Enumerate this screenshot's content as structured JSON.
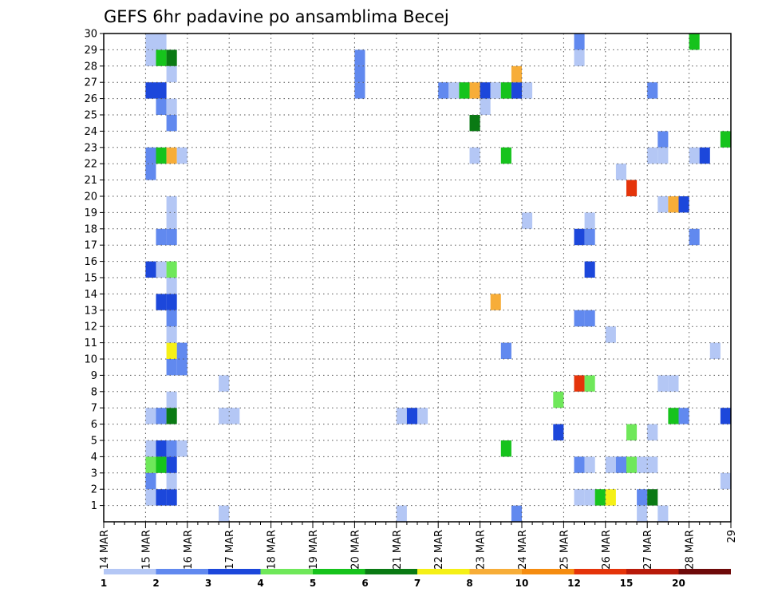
{
  "chart_data": {
    "type": "heatmap",
    "title": "GEFS 6hr padavine po ansamblima Becej",
    "xlabel": "",
    "ylabel": "",
    "x_tick_labels": [
      "14 MAR",
      "15 MAR",
      "16 MAR",
      "17 MAR",
      "18 MAR",
      "19 MAR",
      "20 MAR",
      "21 MAR",
      "22 MAR",
      "23 MAR",
      "24 MAR",
      "25 MAR",
      "26 MAR",
      "27 MAR",
      "28 MAR",
      "29"
    ],
    "y_tick_labels": [
      "1",
      "2",
      "3",
      "4",
      "5",
      "6",
      "7",
      "8",
      "9",
      "10",
      "11",
      "12",
      "13",
      "14",
      "15",
      "16",
      "17",
      "18",
      "19",
      "20",
      "21",
      "22",
      "23",
      "24",
      "25",
      "26",
      "27",
      "28",
      "29",
      "30"
    ],
    "x_range": [
      "14 MAR 00z",
      "29 MAR 00z"
    ],
    "time_step": "6hr",
    "y_range": [
      0,
      30
    ],
    "grid": true,
    "colorbar": {
      "labels": [
        "1",
        "2",
        "3",
        "4",
        "5",
        "6",
        "7",
        "8",
        "10",
        "12",
        "15",
        "20"
      ],
      "colors": [
        "#b4c7f5",
        "#6189ef",
        "#1c47db",
        "#6fe85a",
        "#16c31c",
        "#0a7a14",
        "#f5f016",
        "#f7ad38",
        "#f58c10",
        "#e5340a",
        "#b81a0a",
        "#6e0a0a"
      ]
    },
    "cells": [
      {
        "t": "15 MAR 00z",
        "member": 1,
        "level": 1
      },
      {
        "t": "15 MAR 06z",
        "member": 1,
        "level": 3
      },
      {
        "t": "15 MAR 12z",
        "member": 1,
        "level": 3
      },
      {
        "t": "15 MAR 00z",
        "member": 2,
        "level": 2
      },
      {
        "t": "15 MAR 12z",
        "member": 2,
        "level": 1
      },
      {
        "t": "15 MAR 00z",
        "member": 3,
        "level": 4
      },
      {
        "t": "15 MAR 06z",
        "member": 3,
        "level": 5
      },
      {
        "t": "15 MAR 12z",
        "member": 3,
        "level": 3
      },
      {
        "t": "15 MAR 00z",
        "member": 4,
        "level": 1
      },
      {
        "t": "15 MAR 06z",
        "member": 4,
        "level": 3
      },
      {
        "t": "15 MAR 12z",
        "member": 4,
        "level": 2
      },
      {
        "t": "15 MAR 18z",
        "member": 4,
        "level": 1
      },
      {
        "t": "15 MAR 00z",
        "member": 6,
        "level": 1
      },
      {
        "t": "15 MAR 06z",
        "member": 6,
        "level": 2
      },
      {
        "t": "15 MAR 12z",
        "member": 6,
        "level": 6
      },
      {
        "t": "15 MAR 12z",
        "member": 7,
        "level": 1
      },
      {
        "t": "15 MAR 12z",
        "member": 9,
        "level": 2
      },
      {
        "t": "15 MAR 18z",
        "member": 9,
        "level": 2
      },
      {
        "t": "15 MAR 12z",
        "member": 10,
        "level": 7
      },
      {
        "t": "15 MAR 18z",
        "member": 10,
        "level": 2
      },
      {
        "t": "15 MAR 12z",
        "member": 11,
        "level": 1
      },
      {
        "t": "15 MAR 12z",
        "member": 12,
        "level": 2
      },
      {
        "t": "15 MAR 06z",
        "member": 13,
        "level": 3
      },
      {
        "t": "15 MAR 12z",
        "member": 13,
        "level": 3
      },
      {
        "t": "15 MAR 12z",
        "member": 14,
        "level": 1
      },
      {
        "t": "15 MAR 00z",
        "member": 15,
        "level": 3
      },
      {
        "t": "15 MAR 06z",
        "member": 15,
        "level": 1
      },
      {
        "t": "15 MAR 12z",
        "member": 15,
        "level": 4
      },
      {
        "t": "15 MAR 06z",
        "member": 17,
        "level": 2
      },
      {
        "t": "15 MAR 12z",
        "member": 17,
        "level": 2
      },
      {
        "t": "15 MAR 12z",
        "member": 18,
        "level": 1
      },
      {
        "t": "15 MAR 12z",
        "member": 19,
        "level": 1
      },
      {
        "t": "15 MAR 00z",
        "member": 21,
        "level": 2
      },
      {
        "t": "15 MAR 00z",
        "member": 22,
        "level": 2
      },
      {
        "t": "15 MAR 06z",
        "member": 22,
        "level": 5
      },
      {
        "t": "15 MAR 12z",
        "member": 22,
        "level": 8
      },
      {
        "t": "15 MAR 18z",
        "member": 22,
        "level": 1
      },
      {
        "t": "15 MAR 12z",
        "member": 24,
        "level": 2
      },
      {
        "t": "15 MAR 06z",
        "member": 25,
        "level": 2
      },
      {
        "t": "15 MAR 12z",
        "member": 25,
        "level": 1
      },
      {
        "t": "15 MAR 00z",
        "member": 26,
        "level": 3
      },
      {
        "t": "15 MAR 06z",
        "member": 26,
        "level": 3
      },
      {
        "t": "15 MAR 12z",
        "member": 27,
        "level": 1
      },
      {
        "t": "15 MAR 00z",
        "member": 28,
        "level": 1
      },
      {
        "t": "15 MAR 06z",
        "member": 28,
        "level": 5
      },
      {
        "t": "15 MAR 12z",
        "member": 28,
        "level": 6
      },
      {
        "t": "15 MAR 00z",
        "member": 29,
        "level": 1
      },
      {
        "t": "15 MAR 06z",
        "member": 29,
        "level": 1
      },
      {
        "t": "16 MAR 18z",
        "member": 0,
        "level": 1
      },
      {
        "t": "16 MAR 18z",
        "member": 6,
        "level": 1
      },
      {
        "t": "16 MAR 18z",
        "member": 8,
        "level": 1
      },
      {
        "t": "17 MAR 00z",
        "member": 6,
        "level": 1
      },
      {
        "t": "20 MAR 00z",
        "member": 26,
        "level": 2
      },
      {
        "t": "20 MAR 00z",
        "member": 27,
        "level": 2
      },
      {
        "t": "20 MAR 00z",
        "member": 28,
        "level": 2
      },
      {
        "t": "21 MAR 00z",
        "member": 0,
        "level": 1
      },
      {
        "t": "21 MAR 00z",
        "member": 6,
        "level": 1
      },
      {
        "t": "21 MAR 06z",
        "member": 6,
        "level": 3
      },
      {
        "t": "21 MAR 12z",
        "member": 6,
        "level": 1
      },
      {
        "t": "22 MAR 00z",
        "member": 26,
        "level": 2
      },
      {
        "t": "22 MAR 06z",
        "member": 26,
        "level": 1
      },
      {
        "t": "22 MAR 12z",
        "member": 26,
        "level": 5
      },
      {
        "t": "22 MAR 18z",
        "member": 26,
        "level": 8
      },
      {
        "t": "22 MAR 18z",
        "member": 22,
        "level": 1
      },
      {
        "t": "22 MAR 18z",
        "member": 24,
        "level": 6
      },
      {
        "t": "23 MAR 00z",
        "member": 26,
        "level": 3
      },
      {
        "t": "23 MAR 00z",
        "member": 25,
        "level": 1
      },
      {
        "t": "23 MAR 06z",
        "member": 26,
        "level": 1
      },
      {
        "t": "23 MAR 06z",
        "member": 13,
        "level": 8
      },
      {
        "t": "23 MAR 12z",
        "member": 26,
        "level": 5
      },
      {
        "t": "23 MAR 12z",
        "member": 22,
        "level": 5
      },
      {
        "t": "23 MAR 12z",
        "member": 4,
        "level": 5
      },
      {
        "t": "23 MAR 12z",
        "member": 10,
        "level": 2
      },
      {
        "t": "23 MAR 18z",
        "member": 26,
        "level": 3
      },
      {
        "t": "23 MAR 18z",
        "member": 27,
        "level": 8
      },
      {
        "t": "23 MAR 18z",
        "member": 0,
        "level": 2
      },
      {
        "t": "24 MAR 00z",
        "member": 26,
        "level": 1
      },
      {
        "t": "24 MAR 00z",
        "member": 18,
        "level": 1
      },
      {
        "t": "24 MAR 18z",
        "member": 5,
        "level": 3
      },
      {
        "t": "24 MAR 18z",
        "member": 7,
        "level": 4
      },
      {
        "t": "25 MAR 06z",
        "member": 29,
        "level": 2
      },
      {
        "t": "25 MAR 06z",
        "member": 28,
        "level": 1
      },
      {
        "t": "25 MAR 06z",
        "member": 17,
        "level": 3
      },
      {
        "t": "25 MAR 06z",
        "member": 12,
        "level": 2
      },
      {
        "t": "25 MAR 06z",
        "member": 8,
        "level": 10
      },
      {
        "t": "25 MAR 06z",
        "member": 3,
        "level": 2
      },
      {
        "t": "25 MAR 06z",
        "member": 1,
        "level": 1
      },
      {
        "t": "25 MAR 06z",
        "member": -1,
        "level": 3
      },
      {
        "t": "25 MAR 12z",
        "member": 18,
        "level": 1
      },
      {
        "t": "25 MAR 12z",
        "member": 17,
        "level": 2
      },
      {
        "t": "25 MAR 12z",
        "member": 15,
        "level": 3
      },
      {
        "t": "25 MAR 12z",
        "member": 12,
        "level": 2
      },
      {
        "t": "25 MAR 12z",
        "member": 8,
        "level": 4
      },
      {
        "t": "25 MAR 12z",
        "member": 3,
        "level": 1
      },
      {
        "t": "25 MAR 12z",
        "member": 1,
        "level": 1
      },
      {
        "t": "25 MAR 18z",
        "member": 1,
        "level": 5
      },
      {
        "t": "26 MAR 00z",
        "member": 1,
        "level": 7
      },
      {
        "t": "26 MAR 00z",
        "member": 11,
        "level": 1
      },
      {
        "t": "26 MAR 00z",
        "member": 3,
        "level": 1
      },
      {
        "t": "26 MAR 06z",
        "member": 21,
        "level": 1
      },
      {
        "t": "26 MAR 06z",
        "member": 3,
        "level": 2
      },
      {
        "t": "26 MAR 12z",
        "member": 20,
        "level": 10
      },
      {
        "t": "26 MAR 12z",
        "member": 5,
        "level": 4
      },
      {
        "t": "26 MAR 12z",
        "member": 3,
        "level": 4
      },
      {
        "t": "26 MAR 12z",
        "member": -1,
        "level": 3
      },
      {
        "t": "26 MAR 18z",
        "member": 3,
        "level": 1
      },
      {
        "t": "26 MAR 18z",
        "member": 1,
        "level": 2
      },
      {
        "t": "26 MAR 18z",
        "member": 0,
        "level": 1
      },
      {
        "t": "27 MAR 00z",
        "member": 26,
        "level": 2
      },
      {
        "t": "27 MAR 00z",
        "member": 22,
        "level": 1
      },
      {
        "t": "27 MAR 00z",
        "member": 5,
        "level": 1
      },
      {
        "t": "27 MAR 00z",
        "member": 3,
        "level": 1
      },
      {
        "t": "27 MAR 00z",
        "member": 1,
        "level": 6
      },
      {
        "t": "27 MAR 06z",
        "member": 23,
        "level": 2
      },
      {
        "t": "27 MAR 06z",
        "member": 22,
        "level": 1
      },
      {
        "t": "27 MAR 06z",
        "member": 19,
        "level": 1
      },
      {
        "t": "27 MAR 06z",
        "member": 8,
        "level": 1
      },
      {
        "t": "27 MAR 06z",
        "member": 0,
        "level": 1
      },
      {
        "t": "27 MAR 12z",
        "member": 19,
        "level": 8
      },
      {
        "t": "27 MAR 12z",
        "member": 8,
        "level": 1
      },
      {
        "t": "27 MAR 12z",
        "member": 6,
        "level": 5
      },
      {
        "t": "27 MAR 18z",
        "member": 19,
        "level": 3
      },
      {
        "t": "27 MAR 18z",
        "member": 6,
        "level": 2
      },
      {
        "t": "28 MAR 00z",
        "member": 29,
        "level": 5
      },
      {
        "t": "28 MAR 00z",
        "member": 22,
        "level": 1
      },
      {
        "t": "28 MAR 00z",
        "member": 17,
        "level": 2
      },
      {
        "t": "28 MAR 06z",
        "member": 22,
        "level": 3
      },
      {
        "t": "28 MAR 12z",
        "member": 10,
        "level": 1
      },
      {
        "t": "28 MAR 18z",
        "member": 23,
        "level": 5
      },
      {
        "t": "28 MAR 18z",
        "member": 6,
        "level": 3
      },
      {
        "t": "28 MAR 18z",
        "member": 2,
        "level": 1
      },
      {
        "t": "29 MAR 00z",
        "member": 23,
        "level": 5
      },
      {
        "t": "29 MAR 00z",
        "member": 11,
        "level": 6
      },
      {
        "t": "29 MAR 00z",
        "member": 6,
        "level": 2
      },
      {
        "t": "29 MAR 00z",
        "member": 2,
        "level": 3
      },
      {
        "t": "29 MAR 06z",
        "member": 28,
        "level": 8
      },
      {
        "t": "29 MAR 06z",
        "member": 19,
        "level": 1
      },
      {
        "t": "29 MAR 06z",
        "member": 12,
        "level": 1
      },
      {
        "t": "29 MAR 06z",
        "member": 11,
        "level": 1
      },
      {
        "t": "29 MAR 06z",
        "member": 2,
        "level": 8
      },
      {
        "t": "29 MAR 12z",
        "member": 23,
        "level": 6
      },
      {
        "t": "29 MAR 12z",
        "member": 10,
        "level": 1
      },
      {
        "t": "29 MAR 12z",
        "member": 4,
        "level": 2
      },
      {
        "t": "29 MAR 12z",
        "member": 2,
        "level": 3
      }
    ]
  }
}
